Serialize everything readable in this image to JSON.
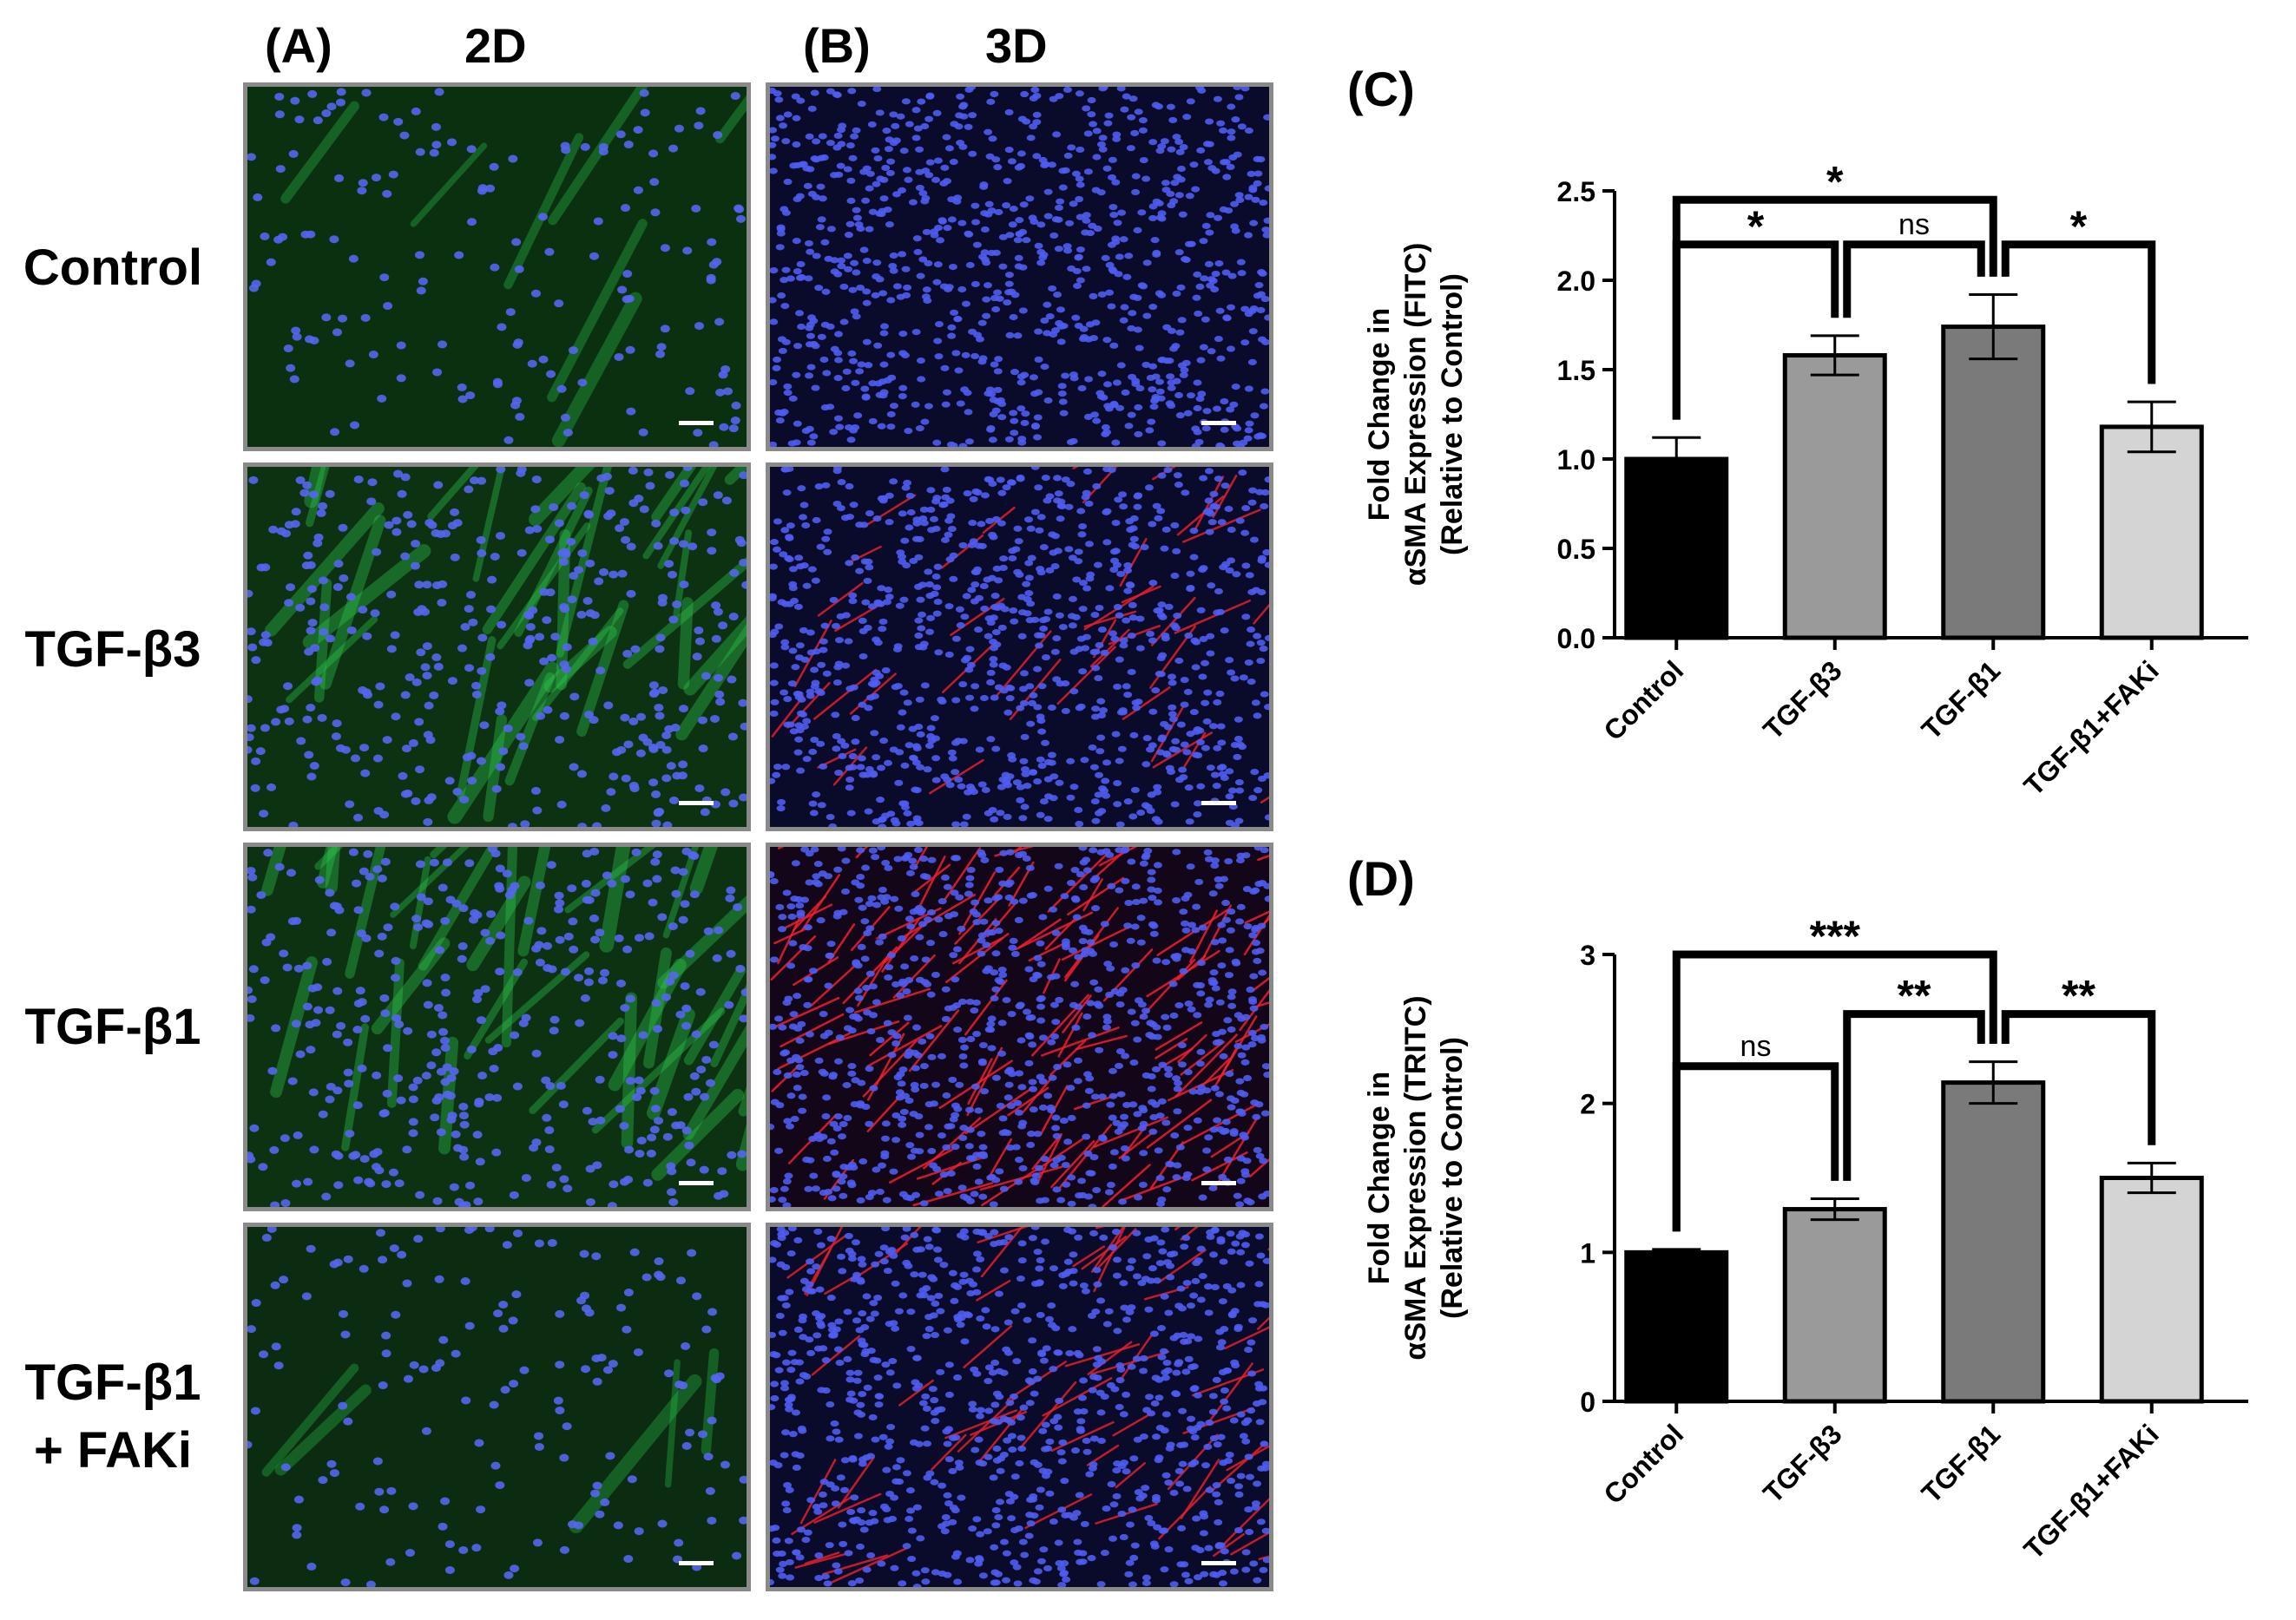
{
  "panels": {
    "a": {
      "label": "(A)",
      "title": "2D"
    },
    "b": {
      "label": "(B)",
      "title": "3D"
    },
    "c": {
      "label": "(C)"
    },
    "d": {
      "label": "(D)"
    }
  },
  "rows": [
    {
      "line1": "Control"
    },
    {
      "line1": "TGF-β3"
    },
    {
      "line1": "TGF-β1"
    },
    {
      "line1": "TGF-β1",
      "line2": "+ FAKi"
    }
  ],
  "micrographs": [
    {
      "condition": "Control",
      "culture": "2D",
      "background": "#0b3010",
      "nuclei_color": "#5566ee",
      "stain_color": "#27c04a",
      "stain_level": 0.15
    },
    {
      "condition": "Control",
      "culture": "3D",
      "background": "#0a0a2a",
      "nuclei_color": "#4f5cf0",
      "stain_color": "#e0202a",
      "stain_level": 0.0
    },
    {
      "condition": "TGF-β3",
      "culture": "2D",
      "background": "#0d3212",
      "nuclei_color": "#5566ee",
      "stain_color": "#30d054",
      "stain_level": 0.7
    },
    {
      "condition": "TGF-β3",
      "culture": "3D",
      "background": "#0a0a2a",
      "nuclei_color": "#4f5cf0",
      "stain_color": "#e0202a",
      "stain_level": 0.3
    },
    {
      "condition": "TGF-β1",
      "culture": "2D",
      "background": "#0d3212",
      "nuclei_color": "#5566ee",
      "stain_color": "#30d054",
      "stain_level": 0.8
    },
    {
      "condition": "TGF-β1",
      "culture": "3D",
      "background": "#120618",
      "nuclei_color": "#4f5cf0",
      "stain_color": "#ee2030",
      "stain_level": 0.9
    },
    {
      "condition": "TGF-β1 + FAKi",
      "culture": "2D",
      "background": "#0b2c10",
      "nuclei_color": "#5566ee",
      "stain_color": "#27c04a",
      "stain_level": 0.1
    },
    {
      "condition": "TGF-β1 + FAKi",
      "culture": "3D",
      "background": "#0a0a2a",
      "nuclei_color": "#4f5cf0",
      "stain_color": "#e0202a",
      "stain_level": 0.45
    }
  ],
  "chart_data": [
    {
      "type": "bar",
      "panel": "C",
      "categories": [
        "Control",
        "TGF-β3",
        "TGF-β1",
        "TGF-β1+FAKi"
      ],
      "values": [
        1.0,
        1.58,
        1.74,
        1.18
      ],
      "errors": [
        0.12,
        0.11,
        0.18,
        0.14
      ],
      "bar_colors": [
        "#000000",
        "#9a9a9a",
        "#7a7a7a",
        "#d4d4d4"
      ],
      "ylabel_lines": [
        "Fold Change in",
        "αSMA Expression (FITC)",
        "(Relative to Control)"
      ],
      "ylim": [
        0,
        2.5
      ],
      "yticks": [
        "0.0",
        "0.5",
        "1.0",
        "1.5",
        "2.0",
        "2.5"
      ],
      "significance": [
        {
          "from": 0,
          "to": 2,
          "label": "*",
          "level": 2.45
        },
        {
          "from": 0,
          "to": 1,
          "label": "*",
          "level": 2.2
        },
        {
          "from": 1,
          "to": 2,
          "label": "ns",
          "level": 2.2
        },
        {
          "from": 2,
          "to": 3,
          "label": "*",
          "level": 2.2
        }
      ]
    },
    {
      "type": "bar",
      "panel": "D",
      "categories": [
        "Control",
        "TGF-β3",
        "TGF-β1",
        "TGF-β1+FAKi"
      ],
      "values": [
        1.0,
        1.29,
        2.14,
        1.5
      ],
      "errors": [
        0.02,
        0.07,
        0.14,
        0.1
      ],
      "bar_colors": [
        "#000000",
        "#9a9a9a",
        "#7a7a7a",
        "#d4d4d4"
      ],
      "ylabel_lines": [
        "Fold Change in",
        "αSMA Expression (TRITC)",
        "(Relative to Control)"
      ],
      "ylim": [
        0,
        3
      ],
      "yticks": [
        "0",
        "1",
        "2",
        "3"
      ],
      "significance": [
        {
          "from": 0,
          "to": 2,
          "label": "***",
          "level": 3.0
        },
        {
          "from": 0,
          "to": 1,
          "label": "ns",
          "level": 2.25
        },
        {
          "from": 1,
          "to": 2,
          "label": "**",
          "level": 2.6
        },
        {
          "from": 2,
          "to": 3,
          "label": "**",
          "level": 2.6
        }
      ]
    }
  ]
}
